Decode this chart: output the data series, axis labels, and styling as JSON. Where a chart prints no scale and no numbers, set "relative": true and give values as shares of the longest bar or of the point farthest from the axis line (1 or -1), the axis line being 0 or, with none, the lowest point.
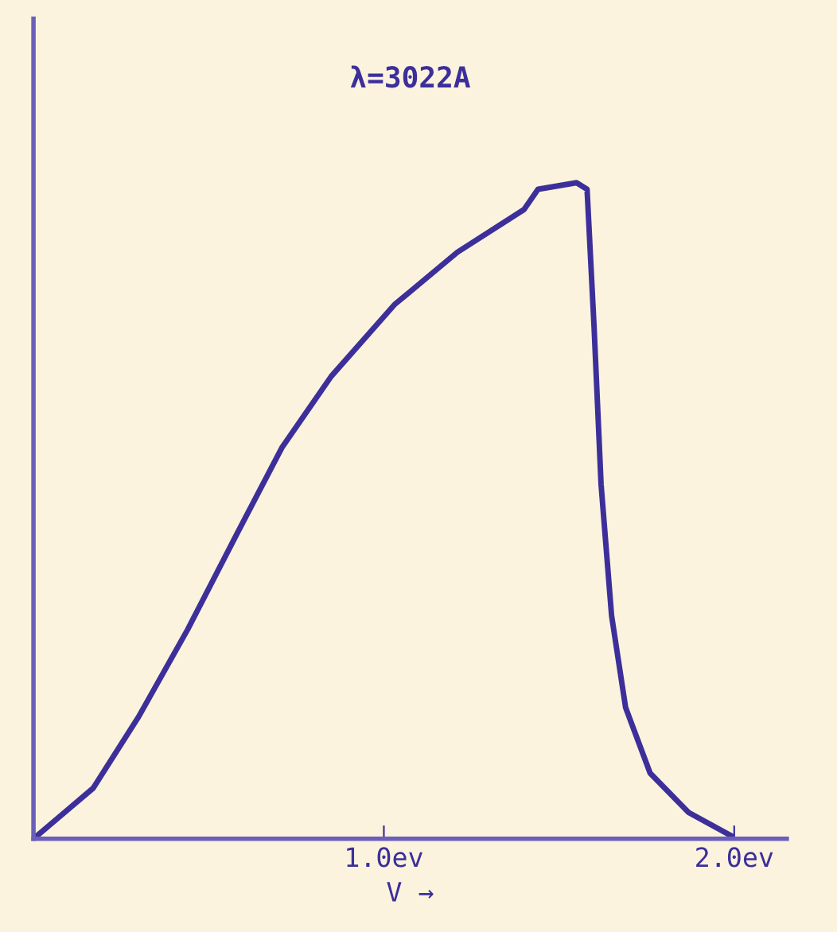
{
  "chart_data": {
    "type": "line",
    "title": "λ=3022A",
    "xlabel": "V →",
    "relative": true,
    "x": [
      0,
      0.17,
      0.3,
      0.44,
      0.58,
      0.71,
      0.85,
      1.03,
      1.21,
      1.4,
      1.44,
      1.55,
      1.58,
      1.6,
      1.62,
      1.65,
      1.69,
      1.76,
      1.87,
      1.99
    ],
    "values": [
      0,
      0.077,
      0.186,
      0.319,
      0.464,
      0.597,
      0.705,
      0.814,
      0.894,
      0.959,
      0.99,
      1.0,
      0.99,
      0.78,
      0.54,
      0.34,
      0.2,
      0.1,
      0.04,
      0.005
    ],
    "color": "#3d2f9a",
    "xlim": [
      0,
      2.15
    ],
    "xticks": [
      {
        "value": 1.0,
        "label": "1.0ev"
      },
      {
        "value": 2.0,
        "label": "2.0ev"
      }
    ],
    "grid": false,
    "marker": "none",
    "line_style": "solid",
    "tick_labels": "x"
  }
}
